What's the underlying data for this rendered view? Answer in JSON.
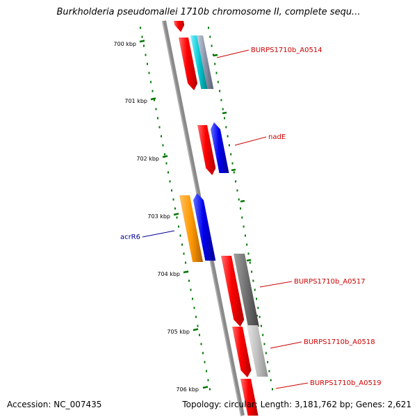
{
  "title": "Burkholderia pseudomallei 1710b chromosome II, complete sequ...",
  "accession": "Accession: NC_007435",
  "topology": "Topology: circular; Length: 3,181,762 bp; Genes: 2,621",
  "ticks": [
    {
      "label": "700 kbp"
    },
    {
      "label": "701 kbp"
    },
    {
      "label": "702 kbp"
    },
    {
      "label": "703 kbp"
    },
    {
      "label": "704 kbp"
    },
    {
      "label": "705 kbp"
    },
    {
      "label": "706 kbp"
    }
  ],
  "gene_labels": [
    {
      "name": "BURPS1710b_A0514",
      "color": "#cc0000"
    },
    {
      "name": "nadE",
      "color": "#cc0000"
    },
    {
      "name": "acrR6",
      "color": "#000099"
    },
    {
      "name": "BURPS1710b_A0517",
      "color": "#cc0000"
    },
    {
      "name": "BURPS1710b_A0518",
      "color": "#cc0000"
    },
    {
      "name": "BURPS1710b_A0519",
      "color": "#cc0000"
    }
  ],
  "colors": {
    "forward_gene": "#ff0000",
    "blue_gene": "#0000ee",
    "orange_gene": "#ff9900",
    "cyan_gene": "#00c8d2",
    "grey_gene": "#707070",
    "light_grey_gene": "#c0c0c0",
    "tick_green": "#007700",
    "backbone": "#888888"
  }
}
